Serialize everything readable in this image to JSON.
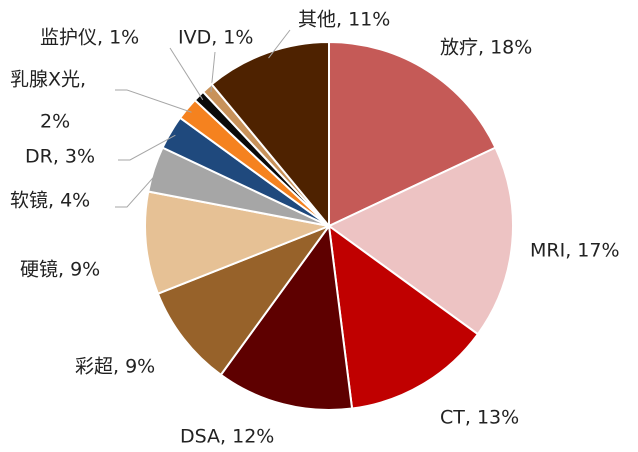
{
  "chart_data": {
    "type": "pie",
    "values": [
      18,
      17,
      13,
      12,
      9,
      9,
      4,
      3,
      2,
      1,
      1,
      11
    ],
    "value_labels": [
      "放疗, 18%",
      "MRI, 17%",
      "CT, 13%",
      "DSA, 12%",
      "彩超, 9%",
      "硬镜, 9%",
      "软镜, 4%",
      "DR, 3%",
      [
        "乳腺X光,",
        "2%"
      ],
      "监护仪, 1%",
      "IVD, 1%",
      "其他, 11%"
    ],
    "colors": [
      "#c55a57",
      "#edc3c3",
      "#c00000",
      "#5e0000",
      "#97622a",
      "#e6c195",
      "#a6a6a6",
      "#1f497d",
      "#f5821f",
      "#0a0a0a",
      "#c8925a",
      "#4e2200"
    ]
  }
}
